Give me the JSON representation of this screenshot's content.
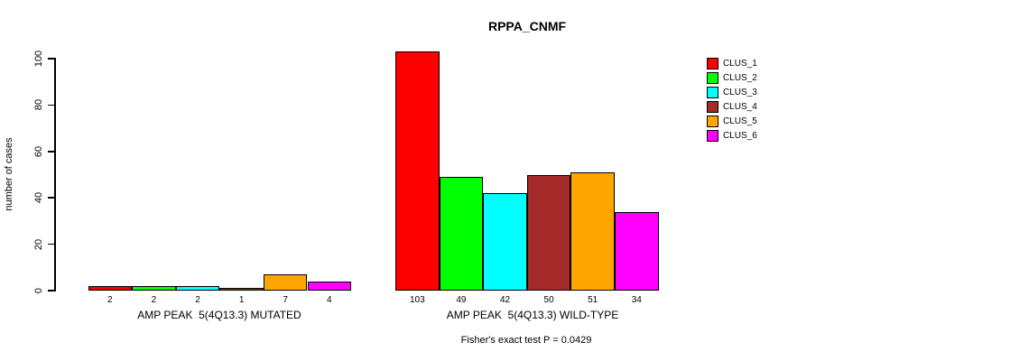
{
  "title": "RPPA_CNMF",
  "y_axis": {
    "label": "number of cases",
    "ticks": [
      0,
      20,
      40,
      60,
      80,
      100
    ]
  },
  "groups": [
    {
      "label": "AMP PEAK  5(4Q13.3) MUTATED"
    },
    {
      "label": "AMP PEAK  5(4Q13.3) WILD-TYPE"
    }
  ],
  "footer": "Fisher's exact test P = 0.0429",
  "legend": {
    "items": [
      {
        "label": "CLUS_1",
        "color": "#FF0000"
      },
      {
        "label": "CLUS_2",
        "color": "#00FF00"
      },
      {
        "label": "CLUS_3",
        "color": "#00FFFF"
      },
      {
        "label": "CLUS_4",
        "color": "#A52A2A"
      },
      {
        "label": "CLUS_5",
        "color": "#FFA500"
      },
      {
        "label": "CLUS_6",
        "color": "#FF00FF"
      }
    ]
  },
  "chart_data": {
    "type": "bar",
    "title": "RPPA_CNMF",
    "xlabel": "",
    "ylabel": "number of cases",
    "ylim": [
      0,
      100
    ],
    "yticks": [
      0,
      20,
      40,
      60,
      80,
      100
    ],
    "grid": false,
    "legend_position": "top-right-inside",
    "categories": [
      "AMP PEAK  5(4Q13.3) MUTATED",
      "AMP PEAK  5(4Q13.3) WILD-TYPE"
    ],
    "series": [
      {
        "name": "CLUS_1",
        "color": "#FF0000",
        "values": [
          2,
          103
        ]
      },
      {
        "name": "CLUS_2",
        "color": "#00FF00",
        "values": [
          2,
          49
        ]
      },
      {
        "name": "CLUS_3",
        "color": "#00FFFF",
        "values": [
          2,
          42
        ]
      },
      {
        "name": "CLUS_4",
        "color": "#A52A2A",
        "values": [
          1,
          50
        ]
      },
      {
        "name": "CLUS_5",
        "color": "#FFA500",
        "values": [
          7,
          51
        ]
      },
      {
        "name": "CLUS_6",
        "color": "#FF00FF",
        "values": [
          4,
          34
        ]
      }
    ],
    "bar_value_labels": [
      [
        2,
        2,
        2,
        1,
        7,
        4
      ],
      [
        103,
        49,
        42,
        50,
        51,
        34
      ]
    ],
    "annotation": "Fisher's exact test P = 0.0429"
  }
}
